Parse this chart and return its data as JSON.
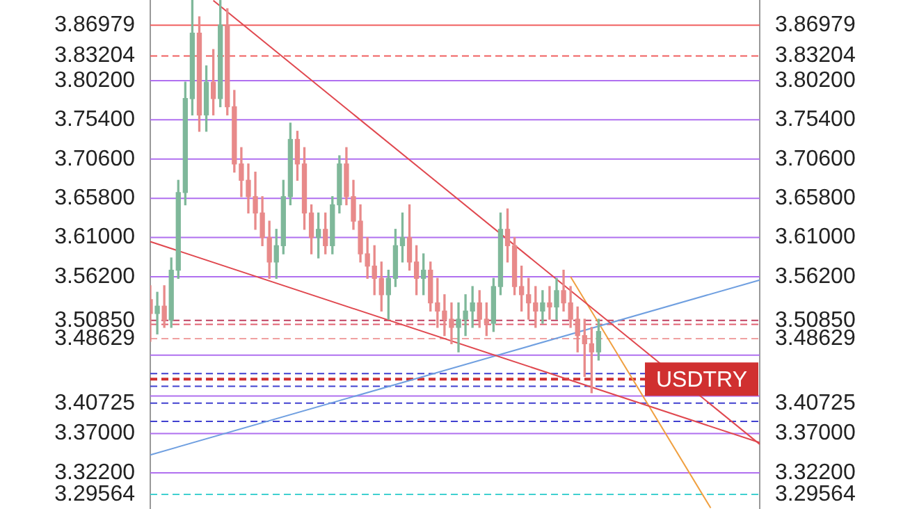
{
  "chart_data": {
    "type": "candlestick",
    "categories": [
      null,
      null,
      null,
      null,
      null,
      null,
      null,
      null,
      null,
      null,
      null,
      null,
      null,
      null,
      null,
      null,
      null,
      null,
      null,
      null,
      null,
      null,
      null,
      null,
      null,
      null,
      null,
      null,
      null,
      null,
      null,
      null,
      null,
      null,
      null,
      null,
      null,
      null,
      null,
      null,
      null,
      null,
      null,
      null,
      null,
      null,
      null,
      null,
      null,
      null,
      null,
      null,
      null,
      null,
      null,
      null,
      null,
      null,
      null,
      null,
      null,
      null,
      null,
      null,
      null,
      null,
      null,
      null,
      null,
      null,
      null,
      null,
      null,
      null,
      null,
      null,
      null,
      null,
      null,
      null,
      null,
      null,
      null,
      null,
      null,
      null,
      null,
      null
    ],
    "ohlc": [
      [
        3.534,
        3.551,
        3.483,
        3.517
      ],
      [
        3.517,
        3.543,
        3.492,
        3.526
      ],
      [
        3.526,
        3.551,
        3.5,
        3.509
      ],
      [
        3.509,
        3.585,
        3.5,
        3.57
      ],
      [
        3.57,
        3.68,
        3.56,
        3.665
      ],
      [
        3.665,
        3.8,
        3.65,
        3.78
      ],
      [
        3.78,
        3.9,
        3.76,
        3.86
      ],
      [
        3.86,
        3.88,
        3.74,
        3.76
      ],
      [
        3.76,
        3.82,
        3.74,
        3.8
      ],
      [
        3.8,
        3.84,
        3.76,
        3.78
      ],
      [
        3.78,
        3.9,
        3.77,
        3.87
      ],
      [
        3.87,
        3.89,
        3.76,
        3.77
      ],
      [
        3.77,
        3.79,
        3.69,
        3.7
      ],
      [
        3.7,
        3.72,
        3.66,
        3.68
      ],
      [
        3.68,
        3.7,
        3.64,
        3.66
      ],
      [
        3.66,
        3.69,
        3.62,
        3.64
      ],
      [
        3.64,
        3.66,
        3.6,
        3.61
      ],
      [
        3.61,
        3.63,
        3.56,
        3.58
      ],
      [
        3.58,
        3.62,
        3.56,
        3.6
      ],
      [
        3.6,
        3.68,
        3.59,
        3.66
      ],
      [
        3.66,
        3.75,
        3.65,
        3.73
      ],
      [
        3.73,
        3.74,
        3.68,
        3.7
      ],
      [
        3.7,
        3.72,
        3.62,
        3.64
      ],
      [
        3.64,
        3.65,
        3.59,
        3.61
      ],
      [
        3.61,
        3.64,
        3.585,
        3.62
      ],
      [
        3.62,
        3.64,
        3.59,
        3.6
      ],
      [
        3.6,
        3.66,
        3.59,
        3.65
      ],
      [
        3.65,
        3.71,
        3.64,
        3.7
      ],
      [
        3.7,
        3.72,
        3.65,
        3.66
      ],
      [
        3.66,
        3.68,
        3.62,
        3.63
      ],
      [
        3.63,
        3.65,
        3.58,
        3.59
      ],
      [
        3.59,
        3.61,
        3.56,
        3.575
      ],
      [
        3.575,
        3.6,
        3.54,
        3.56
      ],
      [
        3.56,
        3.58,
        3.52,
        3.54
      ],
      [
        3.54,
        3.57,
        3.51,
        3.56
      ],
      [
        3.56,
        3.62,
        3.55,
        3.6
      ],
      [
        3.6,
        3.64,
        3.58,
        3.61
      ],
      [
        3.61,
        3.65,
        3.57,
        3.58
      ],
      [
        3.58,
        3.6,
        3.54,
        3.56
      ],
      [
        3.56,
        3.59,
        3.54,
        3.57
      ],
      [
        3.57,
        3.58,
        3.52,
        3.53
      ],
      [
        3.53,
        3.56,
        3.5,
        3.52
      ],
      [
        3.52,
        3.54,
        3.49,
        3.51
      ],
      [
        3.51,
        3.53,
        3.48,
        3.5
      ],
      [
        3.5,
        3.53,
        3.47,
        3.51
      ],
      [
        3.51,
        3.54,
        3.49,
        3.52
      ],
      [
        3.52,
        3.55,
        3.5,
        3.53
      ],
      [
        3.53,
        3.545,
        3.5,
        3.51
      ],
      [
        3.51,
        3.53,
        3.49,
        3.505
      ],
      [
        3.505,
        3.56,
        3.495,
        3.55
      ],
      [
        3.55,
        3.64,
        3.54,
        3.62
      ],
      [
        3.62,
        3.645,
        3.58,
        3.6
      ],
      [
        3.6,
        3.61,
        3.54,
        3.55
      ],
      [
        3.55,
        3.575,
        3.52,
        3.54
      ],
      [
        3.54,
        3.56,
        3.51,
        3.53
      ],
      [
        3.53,
        3.55,
        3.5,
        3.52
      ],
      [
        3.52,
        3.545,
        3.505,
        3.53
      ],
      [
        3.53,
        3.55,
        3.51,
        3.525
      ],
      [
        3.525,
        3.56,
        3.51,
        3.545
      ],
      [
        3.545,
        3.57,
        3.52,
        3.53
      ],
      [
        3.53,
        3.55,
        3.5,
        3.51
      ],
      [
        3.51,
        3.525,
        3.47,
        3.49
      ],
      [
        3.49,
        3.51,
        3.44,
        3.48
      ],
      [
        3.48,
        3.5,
        3.42,
        3.47
      ],
      [
        3.47,
        3.51,
        3.46,
        3.495
      ],
      null,
      null,
      null,
      null,
      null,
      null,
      null,
      null,
      null,
      null,
      null,
      null,
      null,
      null,
      null,
      null,
      null,
      null,
      null,
      null,
      null,
      null,
      null
    ],
    "series": [
      {
        "type": "line",
        "color": "#e0484f",
        "values": [
          null,
          null,
          null,
          null,
          null,
          null,
          null,
          null,
          null,
          3.9,
          null,
          null,
          null,
          null,
          null,
          null,
          null,
          null,
          null,
          null,
          null,
          null,
          null,
          null,
          null,
          null,
          null,
          null,
          null,
          null,
          null,
          null,
          null,
          null,
          null,
          null,
          null,
          null,
          null,
          null,
          null,
          null,
          null,
          null,
          null,
          null,
          null,
          null,
          null,
          null,
          null,
          null,
          null,
          null,
          null,
          null,
          null,
          null,
          null,
          null,
          null,
          null,
          null,
          null,
          null,
          null,
          null,
          null,
          null,
          null,
          null,
          null,
          null,
          null,
          null,
          null,
          null,
          null,
          null,
          null,
          null,
          null,
          null,
          null,
          null,
          null,
          null,
          3.357
        ]
      },
      {
        "type": "line",
        "color": "#e0484f",
        "values": [
          3.605,
          null,
          null,
          null,
          null,
          null,
          null,
          null,
          null,
          null,
          null,
          null,
          null,
          null,
          null,
          null,
          null,
          null,
          null,
          null,
          null,
          null,
          null,
          null,
          null,
          null,
          null,
          null,
          null,
          null,
          null,
          null,
          null,
          null,
          null,
          null,
          null,
          null,
          null,
          null,
          null,
          null,
          null,
          null,
          null,
          null,
          null,
          null,
          null,
          null,
          null,
          null,
          null,
          null,
          null,
          null,
          null,
          null,
          null,
          null,
          null,
          null,
          null,
          null,
          null,
          null,
          null,
          null,
          null,
          null,
          null,
          null,
          null,
          null,
          null,
          null,
          null,
          null,
          null,
          null,
          null,
          null,
          null,
          null,
          null,
          null,
          null,
          3.359
        ]
      },
      {
        "type": "line",
        "color": "#6f9fe0",
        "values": [
          3.344,
          null,
          null,
          null,
          null,
          null,
          null,
          null,
          null,
          null,
          null,
          null,
          null,
          null,
          null,
          null,
          null,
          null,
          null,
          null,
          null,
          null,
          null,
          null,
          null,
          null,
          null,
          null,
          null,
          null,
          null,
          null,
          null,
          null,
          null,
          null,
          null,
          null,
          null,
          null,
          null,
          null,
          null,
          null,
          null,
          null,
          null,
          null,
          null,
          null,
          null,
          null,
          null,
          null,
          null,
          null,
          null,
          null,
          null,
          null,
          null,
          null,
          null,
          null,
          null,
          null,
          null,
          null,
          null,
          null,
          null,
          null,
          null,
          null,
          null,
          null,
          null,
          null,
          null,
          null,
          null,
          null,
          null,
          null,
          null,
          null,
          null,
          3.558
        ]
      },
      {
        "type": "line",
        "color": "#f0a040",
        "values": [
          null,
          null,
          null,
          null,
          null,
          null,
          null,
          null,
          null,
          null,
          null,
          null,
          null,
          null,
          null,
          null,
          null,
          null,
          null,
          null,
          null,
          null,
          null,
          null,
          null,
          null,
          null,
          null,
          null,
          null,
          null,
          null,
          null,
          null,
          null,
          null,
          null,
          null,
          null,
          null,
          null,
          null,
          null,
          null,
          null,
          null,
          null,
          null,
          null,
          null,
          null,
          null,
          null,
          null,
          null,
          null,
          null,
          null,
          null,
          null,
          3.562,
          null,
          null,
          null,
          null,
          null,
          null,
          null,
          null,
          null,
          null,
          null,
          null,
          null,
          null,
          null,
          null,
          null,
          null,
          null,
          3.279,
          null,
          null,
          null,
          null,
          null,
          null,
          null
        ]
      }
    ],
    "ylim": [
      3.2754,
      3.903
    ],
    "yticks": [
      3.86979,
      3.83204,
      {
        "value": 3.802,
        "label": "3.80200"
      },
      {
        "value": 3.754,
        "label": "3.75400"
      },
      {
        "value": 3.706,
        "label": "3.70600"
      },
      {
        "value": 3.658,
        "label": "3.65800"
      },
      {
        "value": 3.61,
        "label": "3.61000"
      },
      {
        "value": 3.562,
        "label": "3.56200"
      },
      {
        "value": 3.5085,
        "label": "3.50850"
      },
      3.48629,
      3.40725,
      {
        "value": 3.37,
        "label": "3.37000"
      },
      {
        "value": 3.322,
        "label": "3.32200"
      },
      3.29564
    ],
    "y2lim": [
      3.2754,
      3.903
    ],
    "y2ticks": [
      3.86979,
      3.83204,
      {
        "value": 3.802,
        "label": "3.80200"
      },
      {
        "value": 3.754,
        "label": "3.75400"
      },
      {
        "value": 3.706,
        "label": "3.70600"
      },
      {
        "value": 3.658,
        "label": "3.65800"
      },
      {
        "value": 3.61,
        "label": "3.61000"
      },
      {
        "value": 3.562,
        "label": "3.56200"
      },
      {
        "value": 3.5085,
        "label": "3.50850"
      },
      3.48629,
      3.40725,
      {
        "value": 3.37,
        "label": "3.37000"
      },
      {
        "value": 3.322,
        "label": "3.32200"
      },
      3.29564
    ],
    "tick_labels": "y",
    "grid": false,
    "ref_lines": [
      {
        "axis": "y",
        "value": 3.86979,
        "color": "#f06060",
        "line_style": "solid"
      },
      {
        "axis": "y",
        "value": 3.83204,
        "color": "#f06060",
        "line_style": "dashed"
      },
      {
        "axis": "y",
        "value": 3.802,
        "color": "#b070f0",
        "line_style": "solid"
      },
      {
        "axis": "y",
        "value": 3.754,
        "color": "#b070f0",
        "line_style": "solid"
      },
      {
        "axis": "y",
        "value": 3.706,
        "color": "#b070f0",
        "line_style": "solid"
      },
      {
        "axis": "y",
        "value": 3.658,
        "color": "#b070f0",
        "line_style": "solid"
      },
      {
        "axis": "y",
        "value": 3.61,
        "color": "#b070f0",
        "line_style": "solid"
      },
      {
        "axis": "y",
        "value": 3.562,
        "color": "#b070f0",
        "line_style": "solid"
      },
      {
        "axis": "y",
        "value": 3.5085,
        "color": "#c04060",
        "line_style": "dashed"
      },
      {
        "axis": "y",
        "value": 3.5036,
        "color": "#e06070",
        "line_style": "dashed"
      },
      {
        "axis": "y",
        "value": 3.48629,
        "color": "#f0a0a0",
        "line_style": "dashed"
      },
      {
        "axis": "y",
        "value": 3.466,
        "color": "#b070f0",
        "line_style": "solid"
      },
      {
        "axis": "y",
        "value": 3.4435,
        "color": "#4040d0",
        "line_style": "dashed"
      },
      {
        "axis": "y",
        "value": 3.4367,
        "color": "#d03030",
        "line_style": "dashed",
        "label": "USDTRY"
      },
      {
        "axis": "y",
        "value": 3.428,
        "color": "#4040d0",
        "line_style": "dashed"
      },
      {
        "axis": "y",
        "value": 3.416,
        "color": "#b070f0",
        "line_style": "solid"
      },
      {
        "axis": "y",
        "value": 3.40725,
        "color": "#4040d0",
        "line_style": "dashed"
      },
      {
        "axis": "y",
        "value": 3.385,
        "color": "#4040d0",
        "line_style": "dashed"
      },
      {
        "axis": "y",
        "value": 3.37,
        "color": "#b070f0",
        "line_style": "solid"
      },
      {
        "axis": "y",
        "value": 3.322,
        "color": "#b070f0",
        "line_style": "solid"
      },
      {
        "axis": "y",
        "value": 3.29564,
        "color": "#40d0d0",
        "line_style": "dashed"
      }
    ]
  }
}
